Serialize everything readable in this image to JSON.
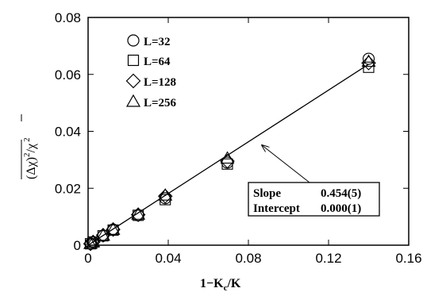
{
  "chart_data": {
    "type": "scatter",
    "title": "",
    "xlabel": "1−K_c/K",
    "xlabel_main": "1−K",
    "xlabel_sub": "c",
    "xlabel_tail": "/K",
    "ylabel": "¯(Δχ)²/¯χ²",
    "ylabel_parts": {
      "open": "(",
      "delta": "Δχ",
      "close": ")",
      "sup": "2",
      "slash": "/",
      "chi": "χ",
      "sup2": "2"
    },
    "xlim": [
      0,
      0.16
    ],
    "ylim": [
      0,
      0.08
    ],
    "xticks": [
      "0",
      "0.04",
      "0.08",
      "0.12",
      "0.16"
    ],
    "yticks": [
      "0",
      "0.02",
      "0.04",
      "0.06",
      "0.08"
    ],
    "legend_position": "top-left",
    "series": [
      {
        "name": "L=32",
        "marker": "circle",
        "x": [
          0.0012,
          0.0025,
          0.0075,
          0.0125,
          0.025,
          0.0385,
          0.0695,
          0.14
        ],
        "y": [
          0.0005,
          0.0011,
          0.0033,
          0.0055,
          0.0105,
          0.0165,
          0.029,
          0.0655
        ]
      },
      {
        "name": "L=64",
        "marker": "square",
        "x": [
          0.0012,
          0.0025,
          0.0075,
          0.0125,
          0.025,
          0.0385,
          0.0695,
          0.14
        ],
        "y": [
          0.0005,
          0.0011,
          0.0033,
          0.0053,
          0.0105,
          0.016,
          0.0285,
          0.0625
        ]
      },
      {
        "name": "L=128",
        "marker": "diamond",
        "x": [
          0.0012,
          0.0025,
          0.0075,
          0.0125,
          0.025,
          0.0385,
          0.0695,
          0.14
        ],
        "y": [
          0.0005,
          0.0011,
          0.0035,
          0.0055,
          0.0107,
          0.0172,
          0.0295,
          0.064
        ]
      },
      {
        "name": "L=256",
        "marker": "triangle",
        "x": [
          0.0012,
          0.0025,
          0.0075,
          0.0125,
          0.025,
          0.0385,
          0.0695,
          0.14
        ],
        "y": [
          0.0005,
          0.0011,
          0.0034,
          0.0055,
          0.0108,
          0.0175,
          0.0305,
          0.0645
        ]
      }
    ],
    "fit_line": {
      "slope": 0.454,
      "intercept": 0.0,
      "x_range": [
        0,
        0.14
      ]
    },
    "annotation": {
      "slope_label": "Slope",
      "slope_value": "0.454(5)",
      "intercept_label": "Intercept",
      "intercept_value": "0.000(1)"
    }
  }
}
